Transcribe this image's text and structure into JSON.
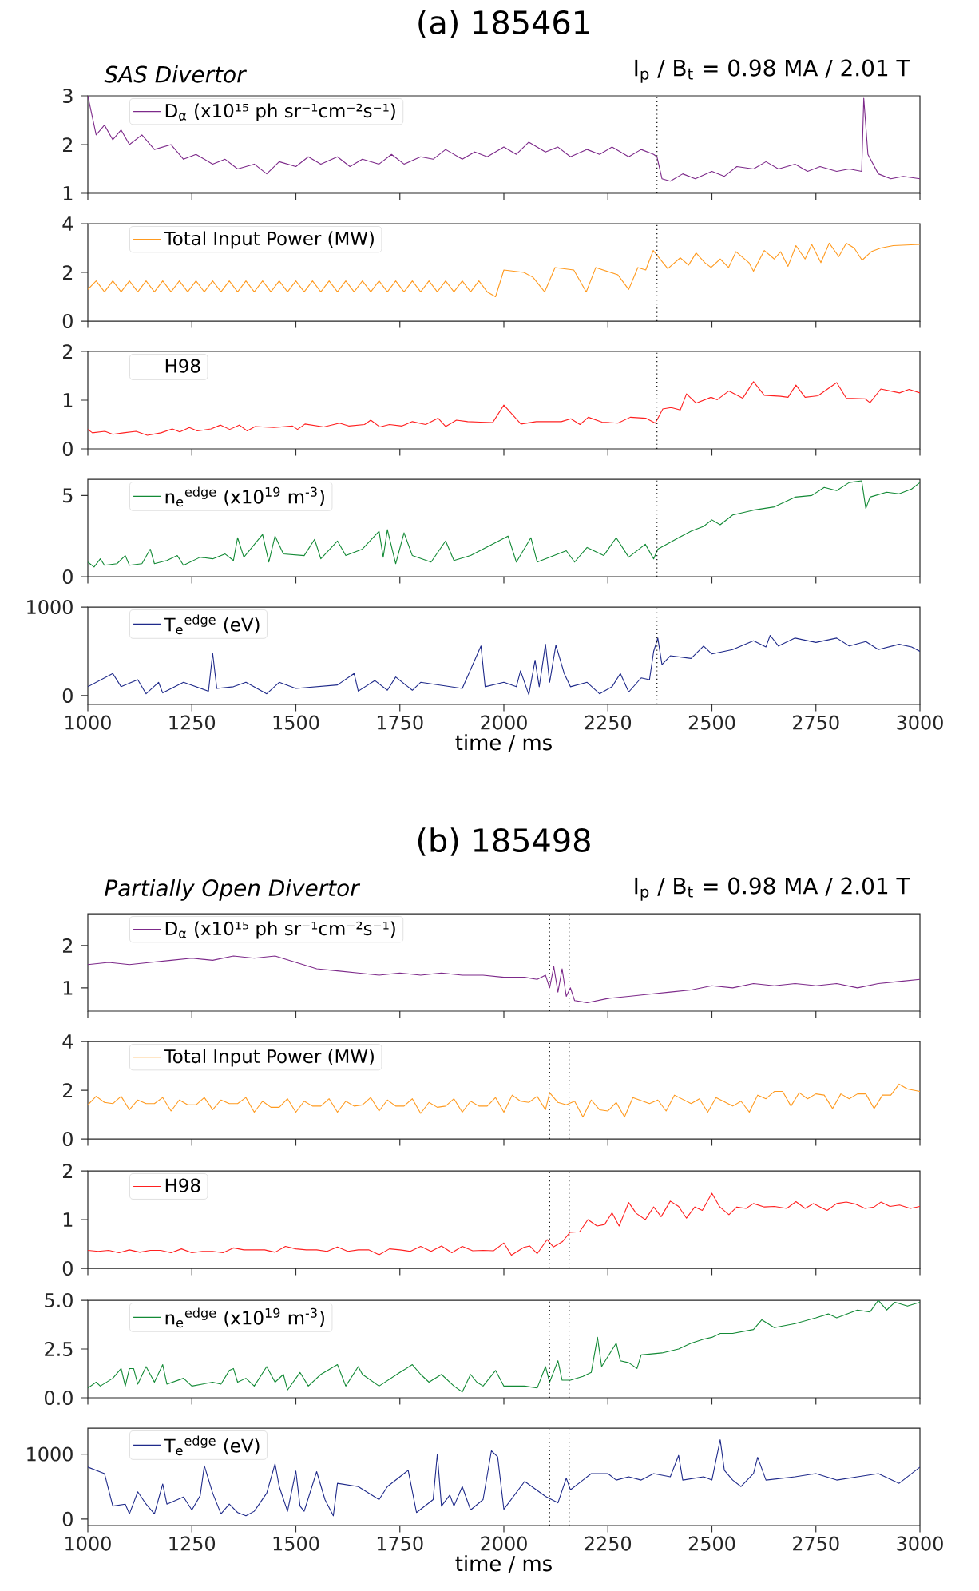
{
  "chart_data": [
    {
      "type": "line",
      "title": "(a) 185461",
      "annotations": [
        "SAS Divertor",
        "I$_{p}$ / B$_{t}$ = 0.98 MA / 2.01 T"
      ],
      "xlim": [
        1000,
        3000
      ],
      "xticks": [
        1000,
        1250,
        1500,
        1750,
        2000,
        2250,
        2500,
        2750,
        3000
      ],
      "ylim": [
        1,
        3
      ],
      "yticks": [
        1,
        2,
        3
      ],
      "tick_labels": "y",
      "legend": "top left",
      "x": [
        1000,
        1010,
        1020,
        1040,
        1060,
        1080,
        1100,
        1130,
        1160,
        1200,
        1230,
        1260,
        1300,
        1330,
        1360,
        1400,
        1430,
        1460,
        1500,
        1530,
        1560,
        1600,
        1630,
        1660,
        1700,
        1730,
        1760,
        1800,
        1830,
        1860,
        1900,
        1930,
        1960,
        2000,
        2030,
        2060,
        2100,
        2130,
        2160,
        2200,
        2230,
        2260,
        2300,
        2330,
        2360,
        2368,
        2380,
        2400,
        2430,
        2460,
        2500,
        2530,
        2560,
        2600,
        2630,
        2660,
        2700,
        2730,
        2760,
        2800,
        2830,
        2860,
        2865,
        2875,
        2900,
        2930,
        2960,
        3000
      ],
      "series": [
        {
          "name": "D$_{α}$ (x10¹⁵ ph sr⁻¹cm⁻²s⁻¹)",
          "color": "#7d2a8a",
          "values": [
            3.0,
            2.6,
            2.2,
            2.4,
            2.1,
            2.3,
            2.0,
            2.2,
            1.9,
            2.0,
            1.7,
            1.8,
            1.6,
            1.7,
            1.5,
            1.6,
            1.4,
            1.65,
            1.55,
            1.75,
            1.6,
            1.75,
            1.55,
            1.7,
            1.6,
            1.8,
            1.6,
            1.75,
            1.7,
            1.9,
            1.7,
            1.85,
            1.75,
            1.95,
            1.8,
            2.05,
            1.85,
            1.95,
            1.75,
            1.9,
            1.8,
            1.95,
            1.75,
            1.9,
            1.8,
            1.75,
            1.3,
            1.25,
            1.4,
            1.3,
            1.45,
            1.35,
            1.55,
            1.5,
            1.65,
            1.5,
            1.6,
            1.45,
            1.55,
            1.45,
            1.5,
            1.45,
            2.95,
            1.8,
            1.4,
            1.3,
            1.35,
            1.3
          ]
        }
      ],
      "ref_lines": [
        {
          "axis": "x",
          "value": 2368,
          "color": "#000000",
          "line_style": "dotted"
        }
      ]
    },
    {
      "type": "line",
      "xlim": [
        1000,
        3000
      ],
      "xticks": [
        1000,
        1250,
        1500,
        1750,
        2000,
        2250,
        2500,
        2750,
        3000
      ],
      "ylim": [
        0,
        4
      ],
      "yticks": [
        0,
        2,
        4
      ],
      "tick_labels": "y",
      "legend": "top left",
      "x": [
        1000,
        1020,
        1040,
        1060,
        1080,
        1100,
        1120,
        1140,
        1160,
        1180,
        1200,
        1220,
        1240,
        1260,
        1280,
        1300,
        1320,
        1340,
        1360,
        1380,
        1400,
        1420,
        1440,
        1460,
        1480,
        1500,
        1520,
        1540,
        1560,
        1580,
        1600,
        1620,
        1640,
        1660,
        1680,
        1700,
        1720,
        1740,
        1760,
        1780,
        1800,
        1820,
        1840,
        1860,
        1880,
        1900,
        1920,
        1940,
        1960,
        1980,
        2000,
        2048,
        2070,
        2098,
        2123,
        2168,
        2198,
        2221,
        2274,
        2300,
        2322,
        2341,
        2359,
        2394,
        2424,
        2444,
        2462,
        2483,
        2498,
        2520,
        2540,
        2558,
        2589,
        2600,
        2626,
        2650,
        2665,
        2683,
        2702,
        2724,
        2740,
        2762,
        2782,
        2805,
        2823,
        2842,
        2861,
        2883,
        2906,
        2936,
        3000
      ],
      "series": [
        {
          "name": "Total Input Power (MW)",
          "color": "#ff9a1f",
          "values": [
            1.3,
            1.65,
            1.2,
            1.65,
            1.2,
            1.65,
            1.2,
            1.65,
            1.2,
            1.65,
            1.2,
            1.65,
            1.2,
            1.65,
            1.2,
            1.65,
            1.2,
            1.65,
            1.2,
            1.65,
            1.2,
            1.65,
            1.2,
            1.65,
            1.2,
            1.65,
            1.2,
            1.65,
            1.2,
            1.65,
            1.2,
            1.65,
            1.2,
            1.65,
            1.2,
            1.65,
            1.2,
            1.65,
            1.2,
            1.65,
            1.2,
            1.65,
            1.2,
            1.65,
            1.2,
            1.65,
            1.2,
            1.65,
            1.2,
            1.0,
            2.1,
            2.0,
            1.8,
            1.2,
            2.2,
            2.1,
            1.2,
            2.2,
            1.9,
            1.3,
            2.2,
            2.1,
            2.9,
            2.15,
            2.6,
            2.3,
            2.8,
            2.4,
            2.2,
            2.55,
            2.2,
            2.85,
            2.4,
            2.05,
            2.9,
            2.55,
            2.85,
            2.25,
            3.1,
            2.55,
            3.15,
            2.4,
            3.2,
            2.65,
            3.2,
            3.0,
            2.5,
            2.85,
            3.0,
            3.1,
            3.15
          ]
        }
      ],
      "ref_lines": [
        {
          "axis": "x",
          "value": 2368,
          "color": "#000000",
          "line_style": "dotted"
        }
      ]
    },
    {
      "type": "line",
      "xlim": [
        1000,
        3000
      ],
      "xticks": [
        1000,
        1250,
        1500,
        1750,
        2000,
        2250,
        2500,
        2750,
        3000
      ],
      "ylim": [
        0,
        2
      ],
      "yticks": [
        0,
        1,
        2
      ],
      "tick_labels": "y",
      "legend": "top left",
      "x": [
        1000,
        1011,
        1041,
        1060,
        1086,
        1116,
        1143,
        1176,
        1203,
        1221,
        1244,
        1263,
        1296,
        1319,
        1341,
        1364,
        1383,
        1402,
        1447,
        1492,
        1504,
        1522,
        1567,
        1605,
        1627,
        1665,
        1680,
        1702,
        1725,
        1755,
        1780,
        1812,
        1842,
        1860,
        1886,
        1913,
        1943,
        1973,
        2000,
        2041,
        2078,
        2138,
        2161,
        2183,
        2203,
        2236,
        2274,
        2304,
        2341,
        2364,
        2382,
        2402,
        2424,
        2439,
        2462,
        2498,
        2513,
        2541,
        2574,
        2600,
        2626,
        2665,
        2683,
        2702,
        2724,
        2755,
        2800,
        2823,
        2868,
        2880,
        2906,
        2951,
        2974,
        3000
      ],
      "series": [
        {
          "name": "H98",
          "color": "#ff2020",
          "values": [
            0.4,
            0.33,
            0.36,
            0.3,
            0.33,
            0.36,
            0.28,
            0.33,
            0.41,
            0.35,
            0.44,
            0.37,
            0.41,
            0.49,
            0.4,
            0.49,
            0.37,
            0.46,
            0.44,
            0.47,
            0.4,
            0.51,
            0.45,
            0.53,
            0.47,
            0.5,
            0.59,
            0.45,
            0.5,
            0.47,
            0.56,
            0.5,
            0.63,
            0.46,
            0.59,
            0.56,
            0.55,
            0.54,
            0.9,
            0.51,
            0.56,
            0.56,
            0.62,
            0.5,
            0.65,
            0.55,
            0.53,
            0.65,
            0.63,
            0.53,
            0.82,
            0.85,
            0.8,
            1.13,
            0.94,
            1.06,
            1.01,
            1.19,
            1.04,
            1.38,
            1.1,
            1.08,
            1.06,
            1.31,
            1.06,
            1.09,
            1.36,
            1.04,
            1.03,
            0.95,
            1.23,
            1.15,
            1.22,
            1.15
          ]
        }
      ],
      "ref_lines": [
        {
          "axis": "x",
          "value": 2368,
          "color": "#000000",
          "line_style": "dotted"
        }
      ]
    },
    {
      "type": "line",
      "xlim": [
        1000,
        3000
      ],
      "xticks": [
        1000,
        1250,
        1500,
        1750,
        2000,
        2250,
        2500,
        2750,
        3000
      ],
      "ylim": [
        0,
        6
      ],
      "yticks": [
        0,
        5
      ],
      "tick_labels": "y",
      "legend": "top left",
      "x": [
        1000,
        1015,
        1030,
        1040,
        1070,
        1090,
        1100,
        1130,
        1150,
        1160,
        1190,
        1215,
        1230,
        1270,
        1300,
        1330,
        1350,
        1360,
        1375,
        1420,
        1435,
        1450,
        1470,
        1520,
        1545,
        1560,
        1600,
        1620,
        1660,
        1700,
        1710,
        1720,
        1740,
        1760,
        1780,
        1825,
        1860,
        1880,
        1920,
        2010,
        2030,
        2065,
        2080,
        2150,
        2170,
        2200,
        2240,
        2270,
        2300,
        2340,
        2360,
        2370,
        2420,
        2450,
        2480,
        2500,
        2520,
        2550,
        2600,
        2650,
        2700,
        2740,
        2770,
        2800,
        2830,
        2860,
        2870,
        2880,
        2920,
        2950,
        2980,
        3000
      ],
      "series": [
        {
          "name": "n$_{e}$$^{edge}$ (x10$^{19}$ m$^{-3}$)",
          "color": "#138a36",
          "values": [
            0.9,
            0.6,
            1.1,
            0.7,
            0.8,
            1.3,
            0.7,
            0.8,
            1.7,
            0.8,
            1.0,
            1.3,
            0.7,
            1.2,
            1.1,
            1.4,
            1.0,
            2.4,
            1.2,
            2.6,
            0.9,
            2.5,
            1.4,
            1.3,
            2.3,
            1.1,
            2.2,
            1.3,
            1.7,
            2.8,
            1.2,
            2.9,
            0.8,
            2.7,
            1.3,
            0.9,
            2.2,
            1.0,
            1.3,
            2.5,
            0.9,
            2.4,
            0.9,
            1.6,
            0.9,
            1.8,
            1.3,
            2.4,
            1.2,
            2.0,
            1.1,
            1.7,
            2.4,
            2.8,
            3.1,
            3.5,
            3.2,
            3.8,
            4.1,
            4.3,
            4.9,
            5.0,
            5.5,
            5.3,
            5.8,
            5.9,
            4.2,
            4.9,
            5.2,
            5.1,
            5.4,
            5.8
          ]
        }
      ],
      "ref_lines": [
        {
          "axis": "x",
          "value": 2368,
          "color": "#000000",
          "line_style": "dotted"
        }
      ]
    },
    {
      "type": "line",
      "xlabel": "time / ms",
      "xlim": [
        1000,
        3000
      ],
      "xticks": [
        1000,
        1250,
        1500,
        1750,
        2000,
        2250,
        2500,
        2750,
        3000
      ],
      "ylim": [
        -100,
        1000
      ],
      "yticks": [
        0,
        1000
      ],
      "legend": "top left",
      "x": [
        1000,
        1060,
        1080,
        1120,
        1140,
        1170,
        1180,
        1230,
        1290,
        1300,
        1310,
        1350,
        1380,
        1430,
        1460,
        1500,
        1600,
        1640,
        1650,
        1690,
        1720,
        1740,
        1780,
        1800,
        1900,
        1945,
        1955,
        2000,
        2030,
        2040,
        2060,
        2075,
        2085,
        2100,
        2110,
        2125,
        2145,
        2160,
        2200,
        2230,
        2260,
        2280,
        2300,
        2330,
        2350,
        2360,
        2370,
        2380,
        2400,
        2450,
        2480,
        2500,
        2550,
        2600,
        2630,
        2640,
        2660,
        2700,
        2750,
        2800,
        2830,
        2870,
        2900,
        2950,
        2980,
        3000
      ],
      "series": [
        {
          "name": "T$_{e}$$^{edge}$ (eV)",
          "color": "#1f2a8a",
          "values": [
            100,
            250,
            100,
            180,
            20,
            150,
            30,
            150,
            50,
            480,
            80,
            100,
            150,
            20,
            150,
            80,
            120,
            250,
            50,
            170,
            60,
            210,
            60,
            150,
            80,
            560,
            100,
            150,
            100,
            280,
            10,
            400,
            100,
            580,
            150,
            570,
            250,
            100,
            150,
            20,
            100,
            250,
            40,
            200,
            180,
            500,
            650,
            350,
            450,
            420,
            560,
            470,
            520,
            620,
            550,
            680,
            560,
            650,
            600,
            650,
            560,
            610,
            520,
            580,
            550,
            500
          ]
        }
      ],
      "ref_lines": [
        {
          "axis": "x",
          "value": 2368,
          "color": "#000000",
          "line_style": "dotted"
        }
      ]
    },
    {
      "type": "line",
      "title": "(b) 185498",
      "annotations": [
        "Partially Open Divertor",
        "I$_{p}$ / B$_{t}$ = 0.98 MA / 2.01 T"
      ],
      "xlim": [
        1000,
        3000
      ],
      "xticks": [
        1000,
        1250,
        1500,
        1750,
        2000,
        2250,
        2500,
        2750,
        3000
      ],
      "ylim": [
        0.45,
        2.75
      ],
      "yticks": [
        1,
        2
      ],
      "tick_labels": "y",
      "legend": "top left",
      "x": [
        1000,
        1050,
        1100,
        1150,
        1200,
        1250,
        1300,
        1350,
        1400,
        1450,
        1500,
        1550,
        1600,
        1650,
        1700,
        1750,
        1800,
        1850,
        1900,
        1950,
        2000,
        2050,
        2080,
        2100,
        2110,
        2120,
        2130,
        2140,
        2150,
        2160,
        2170,
        2200,
        2250,
        2300,
        2350,
        2400,
        2450,
        2500,
        2550,
        2600,
        2650,
        2700,
        2750,
        2800,
        2850,
        2900,
        2950,
        3000
      ],
      "series": [
        {
          "name": "D$_{α}$ (x10¹⁵ ph sr⁻¹cm⁻²s⁻¹)",
          "color": "#7d2a8a",
          "values": [
            1.55,
            1.6,
            1.55,
            1.6,
            1.65,
            1.7,
            1.65,
            1.75,
            1.7,
            1.75,
            1.6,
            1.45,
            1.4,
            1.35,
            1.3,
            1.35,
            1.3,
            1.35,
            1.3,
            1.3,
            1.25,
            1.25,
            1.2,
            1.3,
            1.0,
            1.5,
            0.9,
            1.45,
            0.8,
            1.0,
            0.7,
            0.65,
            0.75,
            0.8,
            0.85,
            0.9,
            0.95,
            1.05,
            1.0,
            1.1,
            1.05,
            1.1,
            1.05,
            1.1,
            1.0,
            1.1,
            1.15,
            1.2
          ]
        }
      ],
      "ref_lines": [
        {
          "axis": "x",
          "value": 2110,
          "color": "#000000",
          "line_style": "dotted"
        },
        {
          "axis": "x",
          "value": 2157,
          "color": "#000000",
          "line_style": "dotted"
        }
      ]
    },
    {
      "type": "line",
      "xlim": [
        1000,
        3000
      ],
      "xticks": [
        1000,
        1250,
        1500,
        1750,
        2000,
        2250,
        2500,
        2750,
        3000
      ],
      "ylim": [
        0,
        4
      ],
      "yticks": [
        0,
        2,
        4
      ],
      "tick_labels": "y",
      "legend": "top left",
      "x": [
        1000,
        1020,
        1040,
        1060,
        1080,
        1100,
        1120,
        1140,
        1160,
        1180,
        1200,
        1220,
        1240,
        1260,
        1280,
        1300,
        1320,
        1340,
        1360,
        1380,
        1400,
        1420,
        1440,
        1460,
        1480,
        1500,
        1520,
        1540,
        1560,
        1580,
        1600,
        1620,
        1640,
        1660,
        1680,
        1700,
        1720,
        1740,
        1760,
        1780,
        1800,
        1820,
        1840,
        1860,
        1880,
        1900,
        1920,
        1940,
        1960,
        1980,
        2000,
        2020,
        2040,
        2060,
        2080,
        2100,
        2110,
        2130,
        2150,
        2170,
        2190,
        2210,
        2230,
        2250,
        2270,
        2290,
        2310,
        2350,
        2370,
        2390,
        2410,
        2450,
        2470,
        2490,
        2510,
        2550,
        2570,
        2590,
        2610,
        2630,
        2650,
        2670,
        2690,
        2710,
        2730,
        2750,
        2770,
        2790,
        2810,
        2830,
        2850,
        2870,
        2890,
        2910,
        2930,
        2950,
        2970,
        3000
      ],
      "series": [
        {
          "name": "Total Input Power (MW)",
          "color": "#ff9a1f",
          "values": [
            1.4,
            1.75,
            1.5,
            1.45,
            1.75,
            1.2,
            1.6,
            1.45,
            1.45,
            1.7,
            1.15,
            1.6,
            1.4,
            1.4,
            1.7,
            1.2,
            1.6,
            1.45,
            1.45,
            1.7,
            1.1,
            1.55,
            1.3,
            1.3,
            1.65,
            1.1,
            1.55,
            1.35,
            1.35,
            1.65,
            1.1,
            1.55,
            1.35,
            1.4,
            1.7,
            1.15,
            1.6,
            1.35,
            1.35,
            1.65,
            1.05,
            1.5,
            1.3,
            1.35,
            1.65,
            1.1,
            1.55,
            1.35,
            1.35,
            1.7,
            1.1,
            1.8,
            1.55,
            1.5,
            1.75,
            1.2,
            1.9,
            1.5,
            1.4,
            1.55,
            0.9,
            1.6,
            1.2,
            1.15,
            1.5,
            0.9,
            1.7,
            1.45,
            1.6,
            1.15,
            1.8,
            1.45,
            1.65,
            1.1,
            1.7,
            1.35,
            1.55,
            1.1,
            1.8,
            1.65,
            1.95,
            1.95,
            1.35,
            1.9,
            1.65,
            1.85,
            1.8,
            1.25,
            1.85,
            1.65,
            1.85,
            1.85,
            1.25,
            1.8,
            1.8,
            2.25,
            2.05,
            1.95
          ]
        }
      ],
      "ref_lines": [
        {
          "axis": "x",
          "value": 2110,
          "color": "#000000",
          "line_style": "dotted"
        },
        {
          "axis": "x",
          "value": 2157,
          "color": "#000000",
          "line_style": "dotted"
        }
      ]
    },
    {
      "type": "line",
      "xlim": [
        1000,
        3000
      ],
      "xticks": [
        1000,
        1250,
        1500,
        1750,
        2000,
        2250,
        2500,
        2750,
        3000
      ],
      "ylim": [
        0,
        2
      ],
      "yticks": [
        0,
        1,
        2
      ],
      "tick_labels": "y",
      "legend": "top left",
      "x": [
        1000,
        1025,
        1050,
        1075,
        1100,
        1125,
        1150,
        1175,
        1200,
        1225,
        1250,
        1275,
        1300,
        1325,
        1350,
        1375,
        1400,
        1425,
        1450,
        1475,
        1500,
        1525,
        1550,
        1575,
        1600,
        1625,
        1650,
        1675,
        1700,
        1725,
        1750,
        1775,
        1800,
        1825,
        1850,
        1875,
        1900,
        1925,
        1950,
        1975,
        2000,
        2018,
        2048,
        2062,
        2080,
        2104,
        2119,
        2141,
        2159,
        2182,
        2202,
        2224,
        2242,
        2260,
        2277,
        2300,
        2318,
        2340,
        2360,
        2378,
        2400,
        2420,
        2439,
        2459,
        2477,
        2500,
        2519,
        2541,
        2560,
        2582,
        2600,
        2626,
        2650,
        2680,
        2702,
        2724,
        2744,
        2777,
        2800,
        2823,
        2845,
        2868,
        2890,
        2906,
        2928,
        2951,
        2977,
        3000
      ],
      "series": [
        {
          "name": "H98",
          "color": "#ff2020",
          "values": [
            0.37,
            0.35,
            0.37,
            0.32,
            0.38,
            0.33,
            0.37,
            0.37,
            0.32,
            0.4,
            0.32,
            0.35,
            0.35,
            0.32,
            0.42,
            0.38,
            0.38,
            0.38,
            0.33,
            0.45,
            0.4,
            0.38,
            0.38,
            0.35,
            0.44,
            0.35,
            0.38,
            0.38,
            0.28,
            0.4,
            0.38,
            0.35,
            0.45,
            0.35,
            0.46,
            0.32,
            0.45,
            0.36,
            0.37,
            0.36,
            0.52,
            0.27,
            0.43,
            0.46,
            0.3,
            0.59,
            0.44,
            0.55,
            0.74,
            0.75,
            1.0,
            0.87,
            0.9,
            1.14,
            0.87,
            1.35,
            1.13,
            1.0,
            1.26,
            1.06,
            1.38,
            1.27,
            1.03,
            1.26,
            1.19,
            1.54,
            1.26,
            1.1,
            1.26,
            1.23,
            1.33,
            1.26,
            1.27,
            1.23,
            1.37,
            1.23,
            1.33,
            1.19,
            1.33,
            1.36,
            1.32,
            1.23,
            1.26,
            1.36,
            1.27,
            1.3,
            1.23,
            1.27
          ]
        }
      ],
      "ref_lines": [
        {
          "axis": "x",
          "value": 2110,
          "color": "#000000",
          "line_style": "dotted"
        },
        {
          "axis": "x",
          "value": 2157,
          "color": "#000000",
          "line_style": "dotted"
        }
      ]
    },
    {
      "type": "line",
      "xlim": [
        1000,
        3000
      ],
      "xticks": [
        1000,
        1250,
        1500,
        1750,
        2000,
        2250,
        2500,
        2750,
        3000
      ],
      "ylim": [
        0,
        5
      ],
      "yticks": [
        {
          "value": 0,
          "label": "0.0"
        },
        {
          "value": 2.5,
          "label": "2.5"
        },
        {
          "value": 5,
          "label": "5.0"
        }
      ],
      "tick_labels": "y",
      "legend": "top left",
      "x": [
        1000,
        1020,
        1030,
        1060,
        1080,
        1090,
        1100,
        1110,
        1120,
        1140,
        1160,
        1180,
        1190,
        1230,
        1250,
        1300,
        1320,
        1340,
        1350,
        1360,
        1380,
        1400,
        1430,
        1450,
        1470,
        1480,
        1510,
        1530,
        1560,
        1600,
        1620,
        1650,
        1660,
        1700,
        1750,
        1780,
        1800,
        1820,
        1850,
        1880,
        1900,
        1920,
        1935,
        1950,
        1980,
        2000,
        2050,
        2080,
        2100,
        2110,
        2130,
        2140,
        2160,
        2190,
        2210,
        2225,
        2235,
        2270,
        2280,
        2300,
        2320,
        2330,
        2380,
        2420,
        2450,
        2480,
        2500,
        2520,
        2550,
        2600,
        2620,
        2650,
        2700,
        2750,
        2780,
        2800,
        2850,
        2880,
        2900,
        2920,
        2940,
        2970,
        3000
      ],
      "series": [
        {
          "name": "n$_{e}$$^{edge}$ (x10$^{19}$ m$^{-3}$)",
          "color": "#138a36",
          "values": [
            0.5,
            0.8,
            0.6,
            1.0,
            1.5,
            0.6,
            1.5,
            1.5,
            0.7,
            1.6,
            0.8,
            1.7,
            0.7,
            1.0,
            0.6,
            0.8,
            0.7,
            1.4,
            1.5,
            0.8,
            1.0,
            0.6,
            1.6,
            0.8,
            1.2,
            0.4,
            1.3,
            0.6,
            1.2,
            1.7,
            0.6,
            1.6,
            1.2,
            0.6,
            1.3,
            1.7,
            1.2,
            0.8,
            1.2,
            0.6,
            0.3,
            1.2,
            0.8,
            0.6,
            1.4,
            0.6,
            0.6,
            0.5,
            1.6,
            0.8,
            1.9,
            0.9,
            0.9,
            1.1,
            1.3,
            3.1,
            1.6,
            2.8,
            1.9,
            1.8,
            1.5,
            2.2,
            2.3,
            2.5,
            2.8,
            3.0,
            3.1,
            3.3,
            3.3,
            3.5,
            4.0,
            3.6,
            3.8,
            4.1,
            4.3,
            4.1,
            4.5,
            4.4,
            5.0,
            4.5,
            4.9,
            4.7,
            4.9
          ]
        }
      ],
      "ref_lines": [
        {
          "axis": "x",
          "value": 2110,
          "color": "#000000",
          "line_style": "dotted"
        },
        {
          "axis": "x",
          "value": 2157,
          "color": "#000000",
          "line_style": "dotted"
        }
      ]
    },
    {
      "type": "line",
      "xlabel": "time / ms",
      "xlim": [
        1000,
        3000
      ],
      "xticks": [
        1000,
        1250,
        1500,
        1750,
        2000,
        2250,
        2500,
        2750,
        3000
      ],
      "ylim": [
        -100,
        1400
      ],
      "yticks": [
        0,
        1000
      ],
      "legend": "top left",
      "x": [
        1000,
        1040,
        1060,
        1090,
        1100,
        1120,
        1140,
        1160,
        1180,
        1190,
        1230,
        1250,
        1270,
        1280,
        1300,
        1320,
        1340,
        1360,
        1380,
        1400,
        1430,
        1450,
        1460,
        1480,
        1500,
        1510,
        1520,
        1550,
        1570,
        1590,
        1600,
        1650,
        1700,
        1720,
        1770,
        1790,
        1830,
        1840,
        1850,
        1870,
        1880,
        1900,
        1920,
        1950,
        1970,
        1985,
        2000,
        2050,
        2100,
        2130,
        2150,
        2160,
        2190,
        2210,
        2250,
        2270,
        2300,
        2310,
        2320,
        2330,
        2360,
        2400,
        2420,
        2430,
        2480,
        2500,
        2520,
        2530,
        2550,
        2570,
        2600,
        2610,
        2630,
        2700,
        2750,
        2800,
        2850,
        2900,
        2950,
        3000
      ],
      "series": [
        {
          "name": "T$_{e}$$^{edge}$ (eV)",
          "color": "#1f2a8a",
          "values": [
            800,
            700,
            200,
            230,
            80,
            420,
            230,
            80,
            540,
            230,
            340,
            140,
            360,
            820,
            400,
            80,
            230,
            100,
            50,
            120,
            400,
            850,
            500,
            120,
            740,
            200,
            120,
            730,
            300,
            50,
            550,
            500,
            300,
            500,
            750,
            100,
            300,
            1000,
            200,
            370,
            200,
            500,
            140,
            300,
            1050,
            960,
            150,
            580,
            350,
            250,
            630,
            450,
            600,
            700,
            700,
            600,
            650,
            null,
            null,
            600,
            700,
            650,
            980,
            600,
            650,
            600,
            1220,
            750,
            600,
            500,
            700,
            950,
            600,
            650,
            700,
            600,
            650,
            700,
            550,
            800
          ]
        }
      ],
      "ref_lines": [
        {
          "axis": "x",
          "value": 2110,
          "color": "#000000",
          "line_style": "dotted"
        },
        {
          "axis": "x",
          "value": 2157,
          "color": "#000000",
          "line_style": "dotted"
        }
      ]
    }
  ]
}
